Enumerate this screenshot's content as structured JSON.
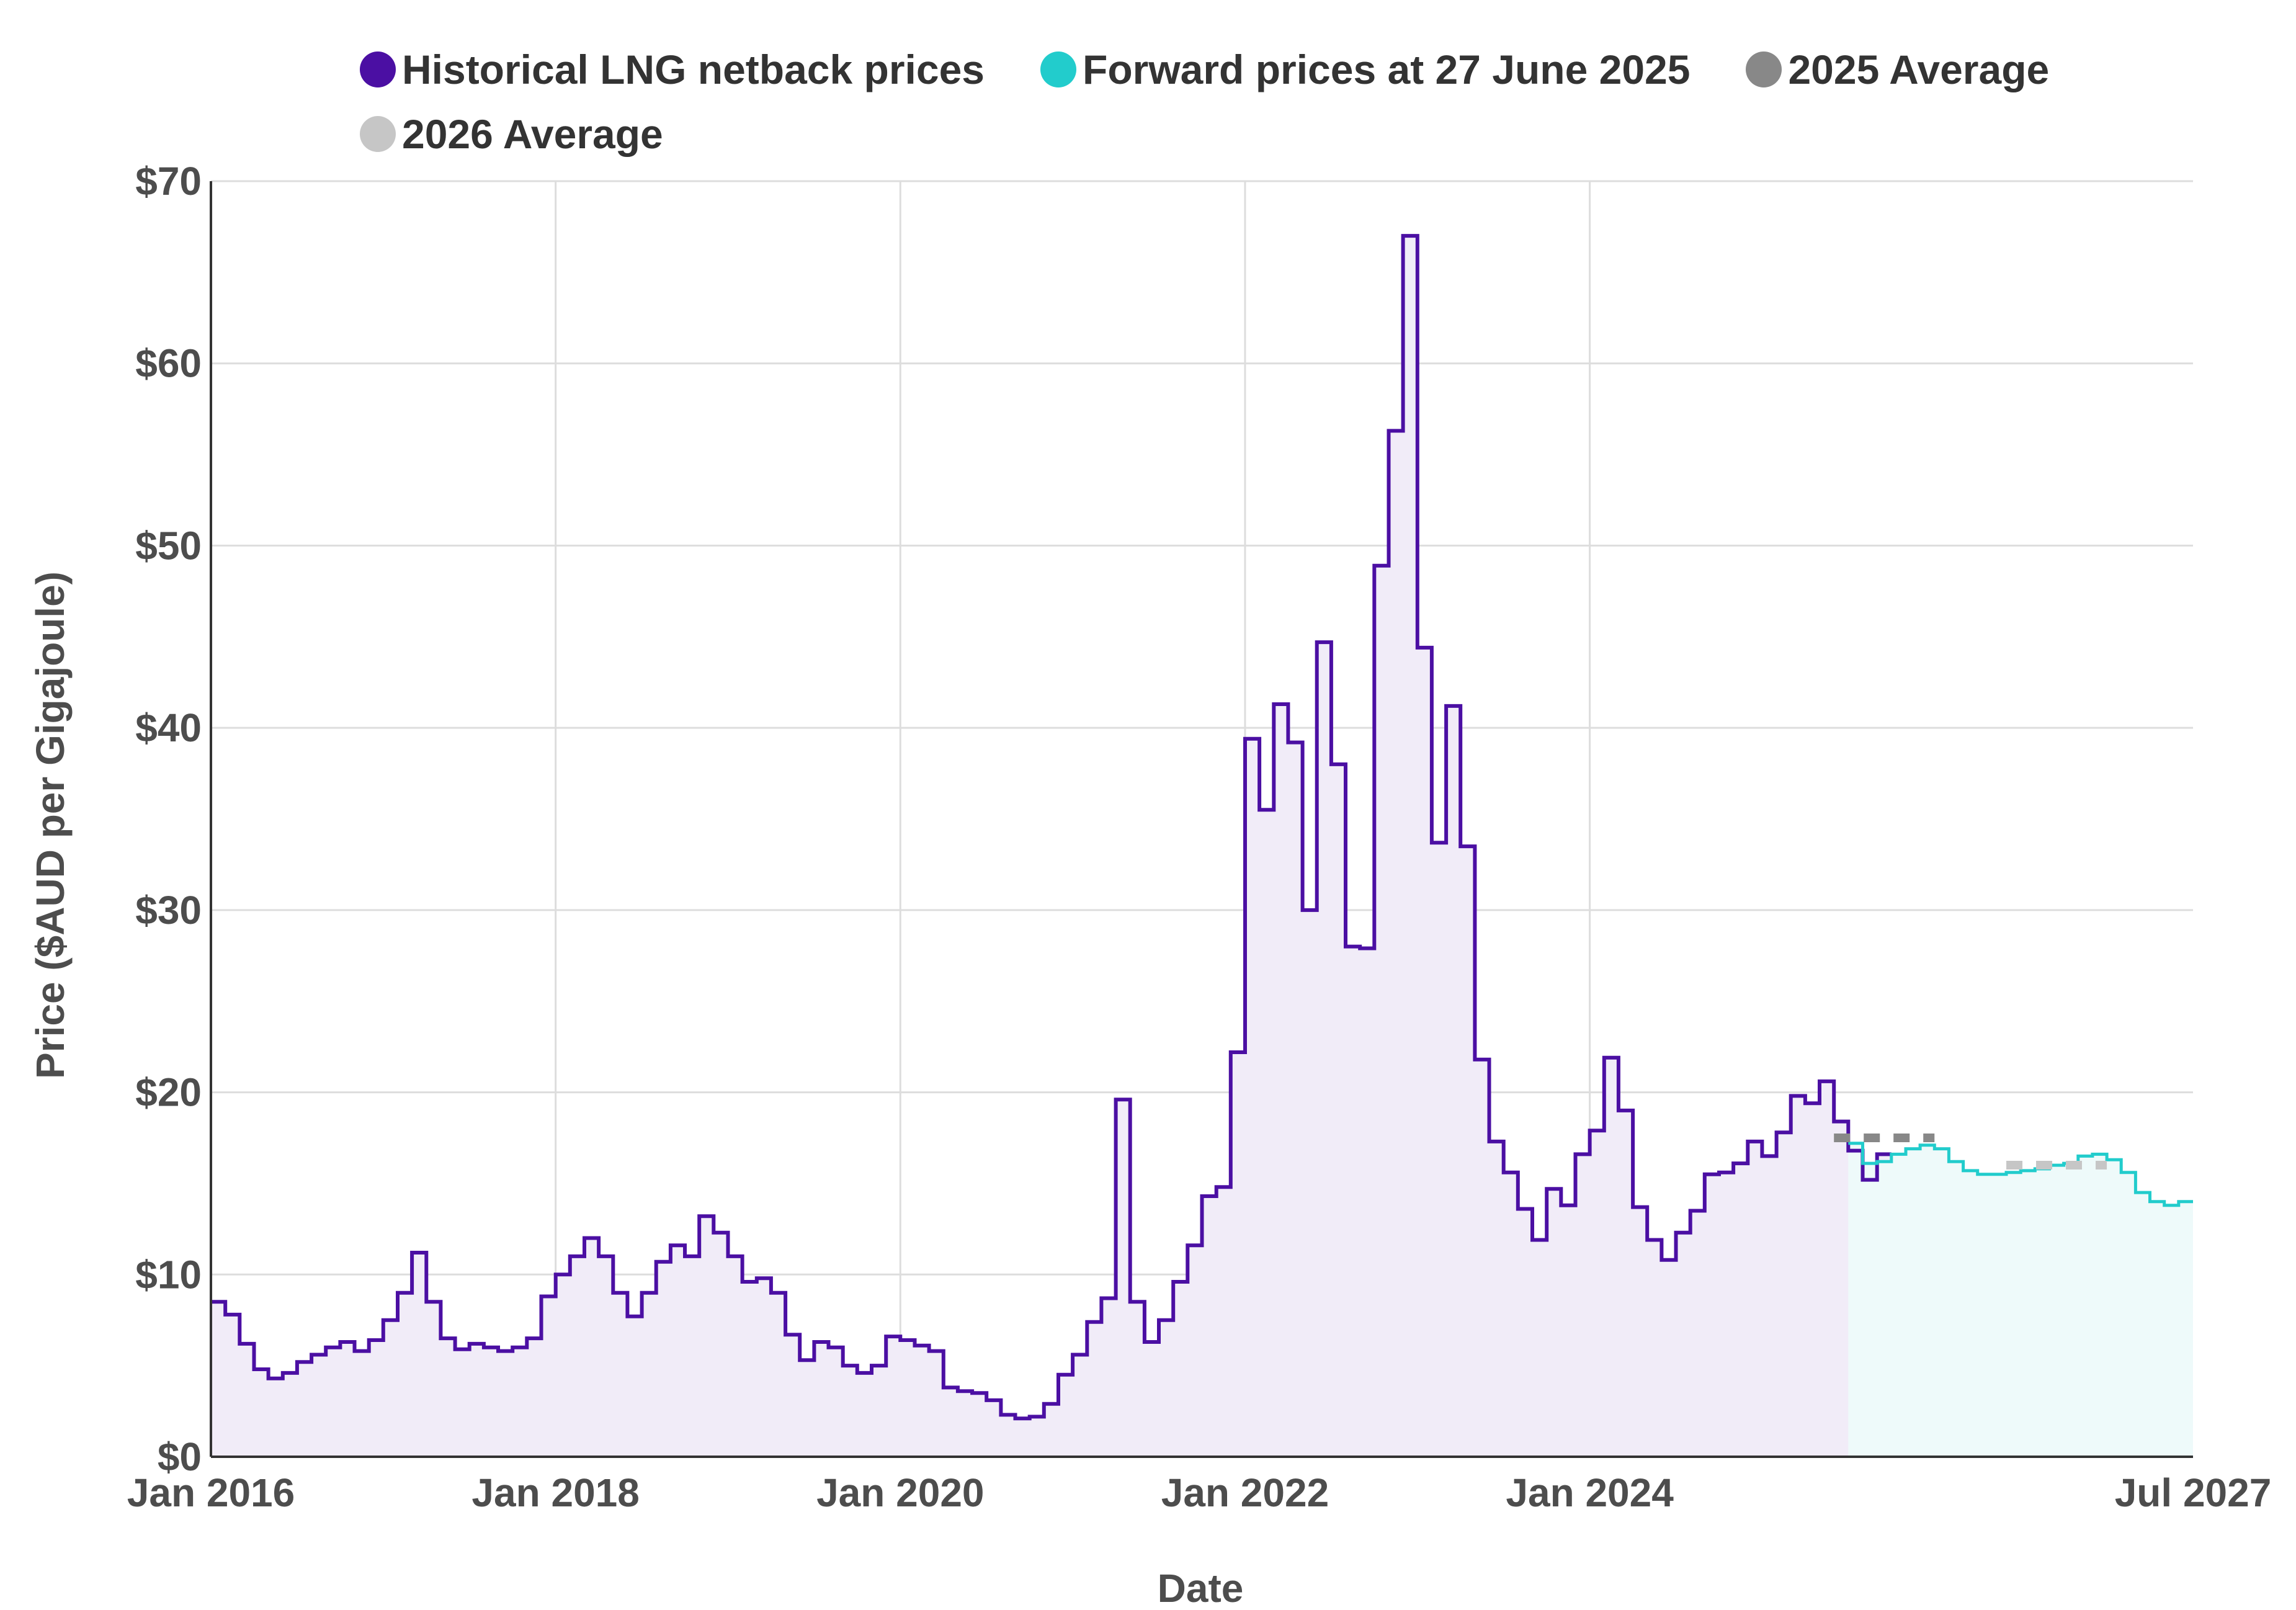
{
  "colors": {
    "historical": "#4b0fa3",
    "historical_fill": "#f1ecf8",
    "forward": "#22cccc",
    "forward_fill": "#eefafa",
    "avg2025": "#888888",
    "avg2026": "#c6c6c6",
    "grid": "#dddddd",
    "axis": "#333333"
  },
  "chart_data": {
    "type": "area",
    "xlabel": "Date",
    "ylabel": "Price ($AUD per Gigajoule)",
    "ylim": [
      0,
      70
    ],
    "yticks": [
      "$0",
      "$10",
      "$20",
      "$30",
      "$40",
      "$50",
      "$60",
      "$70"
    ],
    "xlim": [
      "2016-01",
      "2027-07"
    ],
    "xticks": [
      "Jan 2016",
      "Jan 2018",
      "Jan 2020",
      "Jan 2022",
      "Jan 2024",
      "Jul 2027"
    ],
    "grid": true,
    "legend_position": "top",
    "legend": [
      {
        "label": "Historical LNG netback prices",
        "color_key": "historical"
      },
      {
        "label": "Forward prices at 27 June 2025",
        "color_key": "forward"
      },
      {
        "label": "2025 Average",
        "color_key": "avg2025"
      },
      {
        "label": "2026 Average",
        "color_key": "avg2026"
      }
    ],
    "series": [
      {
        "name": "Historical LNG netback prices",
        "style": "step",
        "start": "2016-01",
        "values": [
          8.5,
          7.8,
          6.2,
          4.8,
          4.3,
          4.6,
          5.2,
          5.6,
          6.0,
          6.3,
          5.8,
          6.4,
          7.5,
          9.0,
          11.2,
          8.5,
          6.5,
          5.9,
          6.2,
          6.0,
          5.8,
          6.0,
          6.5,
          8.8,
          10.0,
          11.0,
          12.0,
          11.0,
          9.0,
          7.7,
          9.0,
          10.7,
          11.6,
          11.0,
          13.2,
          12.3,
          11.0,
          9.6,
          9.8,
          9.0,
          6.7,
          5.3,
          6.3,
          6.0,
          5.0,
          4.6,
          5.0,
          6.6,
          6.4,
          6.1,
          5.8,
          3.8,
          3.6,
          3.5,
          3.1,
          2.3,
          2.1,
          2.2,
          2.9,
          4.5,
          5.6,
          7.4,
          8.7,
          19.6,
          8.5,
          6.3,
          7.5,
          9.6,
          11.6,
          14.3,
          14.8,
          22.2,
          39.4,
          35.5,
          41.3,
          39.2,
          30.0,
          44.7,
          38.0,
          28.0,
          27.9,
          48.9,
          56.3,
          67.0,
          44.4,
          33.7,
          41.2,
          33.5,
          21.8,
          17.3,
          15.6,
          13.6,
          11.9,
          14.7,
          13.8,
          16.6,
          17.9,
          21.9,
          19.0,
          13.7,
          11.9,
          10.8,
          12.3,
          13.5,
          15.5,
          15.6,
          16.1,
          17.3,
          16.5,
          17.8,
          19.8,
          19.4,
          20.6,
          18.4,
          16.8,
          15.2,
          16.6
        ]
      },
      {
        "name": "Forward prices at 27 June 2025",
        "style": "step",
        "start": "2025-07",
        "values": [
          17.2,
          16.1,
          16.2,
          16.6,
          16.9,
          17.1,
          16.9,
          16.2,
          15.7,
          15.5,
          15.5,
          15.6,
          15.7,
          15.8,
          16.0,
          16.1,
          16.5,
          16.6,
          16.3,
          15.6,
          14.5,
          14.0,
          13.8,
          14.0
        ]
      }
    ],
    "averages": [
      {
        "label": "2025 Average",
        "value": 17.5,
        "from": "2025-01",
        "to": "2025-12",
        "color_key": "avg2025"
      },
      {
        "label": "2026 Average",
        "value": 16.0,
        "from": "2026-01",
        "to": "2026-12",
        "color_key": "avg2026"
      }
    ]
  }
}
